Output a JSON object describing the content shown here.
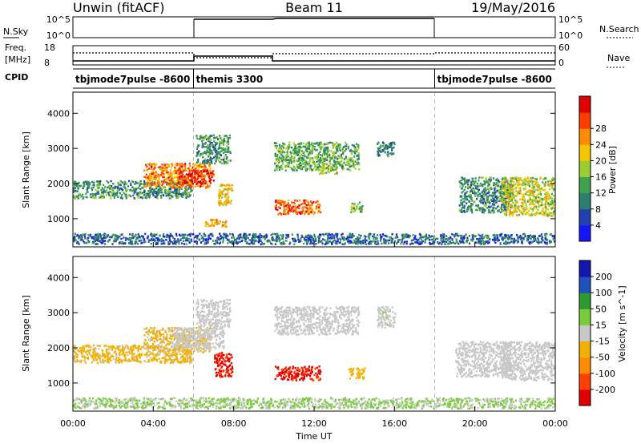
{
  "header": {
    "station": "Unwin (fitACF)",
    "beam": "Beam 11",
    "date": "19/May/2016"
  },
  "top_panels": {
    "nsky_label": "N.Sky",
    "nsky_ticks": [
      "10^5",
      "10^0"
    ],
    "nsky_right_ticks": [
      "10^5",
      "10^0"
    ],
    "nsearch_label": "N.Search",
    "freq_label_line1": "Freq.",
    "freq_label_line2": "[MHz]",
    "freq_ticks": [
      "18",
      "8"
    ],
    "nave_ticks": [
      "60",
      "0"
    ],
    "nave_label": "Nave",
    "cpid_label": "CPID",
    "cpid_segments": [
      {
        "name": "tbjmode7pulse -8600",
        "start_h": 0,
        "end_h": 6
      },
      {
        "name": "themis 3300",
        "start_h": 6,
        "end_h": 18
      },
      {
        "name": "tbjmode7pulse -8600",
        "start_h": 18,
        "end_h": 24
      }
    ]
  },
  "chart_data": [
    {
      "type": "heatmap",
      "panel": "power",
      "xlabel": "",
      "ylabel": "Slant Range [km]",
      "xlim_hours": [
        0,
        24
      ],
      "ylim_km": [
        200,
        4600
      ],
      "yticks": [
        "1000",
        "2000",
        "3000",
        "4000"
      ],
      "colorbar": {
        "label": "Power [dB]",
        "tick_labels": [
          "4",
          "8",
          "12",
          "16",
          "20",
          "24",
          "28"
        ],
        "colors": [
          "#1414ff",
          "#2040b0",
          "#2e7d6e",
          "#3fa050",
          "#9acd32",
          "#f2c500",
          "#ff8c00",
          "#ff3c00",
          "#e00000"
        ],
        "range": [
          0,
          30
        ]
      },
      "regions": [
        {
          "t0": 0.0,
          "t1": 5.9,
          "r0": 1600,
          "r1": 2100,
          "level": 10
        },
        {
          "t0": 3.5,
          "t1": 6.8,
          "r0": 1900,
          "r1": 2600,
          "level": 22
        },
        {
          "t0": 5.2,
          "t1": 7.0,
          "r0": 2000,
          "r1": 2400,
          "level": 27
        },
        {
          "t0": 6.1,
          "t1": 7.8,
          "r0": 2600,
          "r1": 3400,
          "level": 10
        },
        {
          "t0": 7.2,
          "t1": 7.9,
          "r0": 1400,
          "r1": 2000,
          "level": 18
        },
        {
          "t0": 6.5,
          "t1": 7.6,
          "r0": 800,
          "r1": 1000,
          "level": 20
        },
        {
          "t0": 10.0,
          "t1": 14.2,
          "r0": 2400,
          "r1": 3200,
          "level": 12
        },
        {
          "t0": 10.0,
          "t1": 12.3,
          "r0": 1150,
          "r1": 1550,
          "level": 24
        },
        {
          "t0": 12.2,
          "t1": 13.1,
          "r0": 2300,
          "r1": 2600,
          "level": 16
        },
        {
          "t0": 13.8,
          "t1": 14.4,
          "r0": 1200,
          "r1": 1500,
          "level": 14
        },
        {
          "t0": 15.1,
          "t1": 16.0,
          "r0": 2800,
          "r1": 3200,
          "level": 8
        },
        {
          "t0": 19.2,
          "t1": 21.8,
          "r0": 1200,
          "r1": 2200,
          "level": 10
        },
        {
          "t0": 21.3,
          "t1": 24.0,
          "r0": 1100,
          "r1": 2200,
          "level": 16
        },
        {
          "t0": 0.0,
          "t1": 24.0,
          "r0": 300,
          "r1": 600,
          "level": 7
        }
      ]
    },
    {
      "type": "heatmap",
      "panel": "velocity",
      "xlabel": "Time UT",
      "ylabel": "Slant Range [km]",
      "xlim_hours": [
        0,
        24
      ],
      "ylim_km": [
        200,
        4600
      ],
      "yticks": [
        "1000",
        "2000",
        "3000",
        "4000"
      ],
      "xticks": [
        "00:00",
        "04:00",
        "08:00",
        "12:00",
        "16:00",
        "20:00",
        "00:00"
      ],
      "colorbar": {
        "label": "Velocity [m s^-1]",
        "tick_labels": [
          "-200",
          "-100",
          "-50",
          "-15",
          "15",
          "50",
          "100",
          "200"
        ],
        "colors": [
          "#e00000",
          "#ff4000",
          "#ff8c00",
          "#f2b000",
          "#c8c8c8",
          "#7acc3a",
          "#2e9a2e",
          "#2050c0",
          "#1414b0"
        ],
        "range": [
          -250,
          250
        ]
      },
      "regions": [
        {
          "t0": 0.0,
          "t1": 5.9,
          "r0": 1600,
          "r1": 2100,
          "level": -40
        },
        {
          "t0": 3.5,
          "t1": 6.8,
          "r0": 1900,
          "r1": 2600,
          "level": -30
        },
        {
          "t0": 5.0,
          "t1": 7.5,
          "r0": 2000,
          "r1": 2600,
          "level": 0
        },
        {
          "t0": 6.1,
          "t1": 7.8,
          "r0": 2600,
          "r1": 3400,
          "level": 0
        },
        {
          "t0": 7.0,
          "t1": 7.9,
          "r0": 1200,
          "r1": 1900,
          "level": -200
        },
        {
          "t0": 10.0,
          "t1": 14.2,
          "r0": 2400,
          "r1": 3200,
          "level": 0
        },
        {
          "t0": 10.0,
          "t1": 12.3,
          "r0": 1100,
          "r1": 1500,
          "level": -200
        },
        {
          "t0": 13.7,
          "t1": 14.5,
          "r0": 1150,
          "r1": 1450,
          "level": -60
        },
        {
          "t0": 15.1,
          "t1": 16.0,
          "r0": 2600,
          "r1": 3200,
          "level": 10
        },
        {
          "t0": 19.0,
          "t1": 21.8,
          "r0": 1200,
          "r1": 2200,
          "level": 0
        },
        {
          "t0": 21.3,
          "t1": 24.0,
          "r0": 1100,
          "r1": 2200,
          "level": 0
        },
        {
          "t0": 0.0,
          "t1": 24.0,
          "r0": 300,
          "r1": 600,
          "level": 30
        }
      ]
    }
  ]
}
